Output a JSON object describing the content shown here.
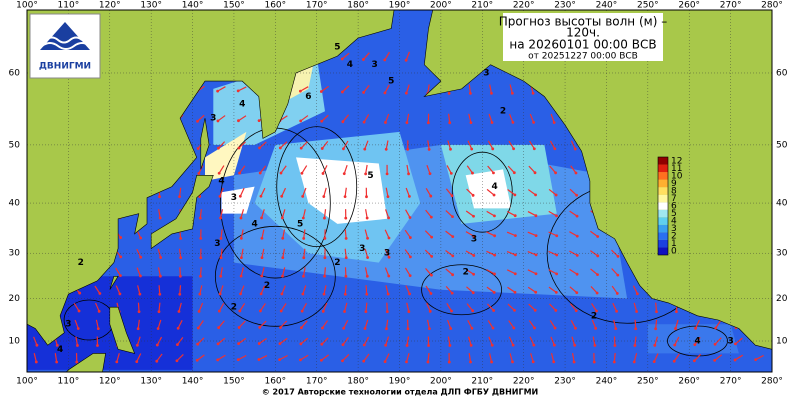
{
  "header": {
    "title_lines": [
      "Прогноз высоты волн (м) –",
      "120ч.",
      "на 20260101 00:00 ВСВ"
    ],
    "issued": "от 20251227 00:00 ВСВ"
  },
  "logo": {
    "text": "ДВНИГМИ"
  },
  "lon_labels": [
    "100°",
    "110°",
    "120°",
    "130°",
    "140°",
    "150°",
    "160°",
    "170°",
    "180°",
    "190°",
    "200°",
    "210°",
    "220°",
    "230°",
    "240°",
    "250°",
    "260°",
    "270°",
    "280°"
  ],
  "lat_labels": [
    "60",
    "50",
    "40",
    "30",
    "20",
    "10"
  ],
  "colorbar": {
    "labels": [
      "0",
      "1",
      "2",
      "3",
      "4",
      "5",
      "6",
      "7",
      "8",
      "9",
      "10",
      "11",
      "12"
    ]
  },
  "contour_labels": [
    "5",
    "4",
    "3",
    "5",
    "6",
    "4",
    "3",
    "3",
    "2",
    "4",
    "5",
    "4",
    "3",
    "4",
    "5",
    "3",
    "3",
    "3",
    "2",
    "3",
    "2",
    "2",
    "2",
    "2",
    "3",
    "2",
    "4",
    "4",
    "3"
  ],
  "footer": "© 2017 Авторские технологии отдела ДЛП ФГБУ ДВНИГМИ"
}
